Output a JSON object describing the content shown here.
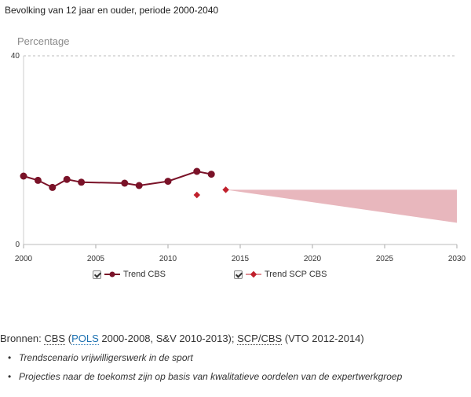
{
  "subtitle": "Bevolking van 12 jaar en ouder, periode 2000-2040",
  "chart_data": {
    "type": "line",
    "ylabel": "Percentage",
    "ylim": [
      0,
      40
    ],
    "yticks": [
      0,
      40
    ],
    "xlim": [
      2000,
      2030
    ],
    "xticks": [
      2000,
      2005,
      2010,
      2015,
      2020,
      2025,
      2030
    ],
    "grid": "dashed top line at 40",
    "series": [
      {
        "name": "Trend CBS",
        "color": "#7a1228",
        "marker": "circle",
        "x": [
          2000,
          2001,
          2002,
          2003,
          2004,
          2007,
          2008,
          2010,
          2012,
          2013
        ],
        "y": [
          14.5,
          13.6,
          12.1,
          13.8,
          13.2,
          13.0,
          12.5,
          13.4,
          15.5,
          14.9
        ]
      },
      {
        "name": "Trend SCP CBS",
        "color": "#c0202c",
        "marker": "diamond",
        "x": [
          2012,
          2014
        ],
        "y": [
          10.5,
          11.6
        ]
      }
    ],
    "projection_band": {
      "color": "#e8b7bd",
      "x": [
        2014,
        2030
      ],
      "upper": [
        11.6,
        11.6
      ],
      "lower": [
        11.6,
        4.6
      ]
    },
    "legend_placement": "bottom"
  },
  "legend": {
    "items": [
      {
        "label": "Trend CBS",
        "color": "#7a1228"
      },
      {
        "label": "Trend SCP CBS",
        "color": "#c0202c"
      }
    ]
  },
  "sources": {
    "prefix": "Bronnen: ",
    "cbs": "CBS",
    "open_paren": " (",
    "pols": "POLS",
    "mid": " 2000-2008, S&V 2010-2013); ",
    "scp_cbs": "SCP/CBS",
    "suffix": " (VTO 2012-2014)"
  },
  "notes": [
    "Trendscenario vrijwilligerswerk in de sport",
    "Projecties naar de toekomst zijn op basis van kwalitatieve oordelen van de expertwerkgroep"
  ]
}
